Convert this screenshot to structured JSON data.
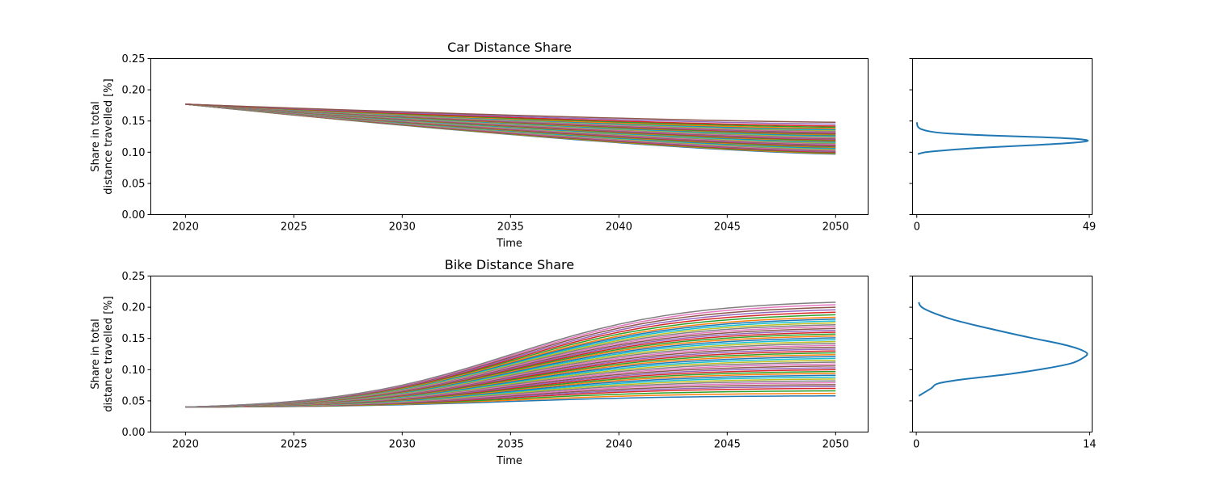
{
  "chart_data": [
    {
      "type": "line",
      "title": "Car Distance Share",
      "xlabel": "Time",
      "ylabel": [
        "Share in total",
        "distance travelled [%]"
      ],
      "xlim": [
        2018.4,
        2051.5
      ],
      "ylim": [
        0,
        0.25
      ],
      "xticks": [
        "2020",
        "2025",
        "2030",
        "2035",
        "2040",
        "2045",
        "2050"
      ],
      "yticks": [
        "0.00",
        "0.05",
        "0.10",
        "0.15",
        "0.20",
        "0.25"
      ],
      "grid": false,
      "legend": "none",
      "x_range": [
        2020,
        2050
      ],
      "start_value": 0.177,
      "end_values": [
        0.097,
        0.098,
        0.099,
        0.1,
        0.101,
        0.102,
        0.103,
        0.104,
        0.105,
        0.106,
        0.107,
        0.108,
        0.109,
        0.11,
        0.111,
        0.112,
        0.113,
        0.114,
        0.115,
        0.116,
        0.117,
        0.118,
        0.119,
        0.12,
        0.121,
        0.122,
        0.123,
        0.124,
        0.125,
        0.126,
        0.127,
        0.128,
        0.129,
        0.13,
        0.131,
        0.132,
        0.133,
        0.134,
        0.135,
        0.136,
        0.137,
        0.138,
        0.14,
        0.142,
        0.145,
        0.148
      ],
      "series_colors": [
        "#1f77b4",
        "#ff7f0e",
        "#2ca02c",
        "#d62728",
        "#9467bd",
        "#8c564b",
        "#e377c2",
        "#7f7f7f",
        "#bcbd22",
        "#17becf"
      ],
      "distribution": {
        "xlim": [
          -1.2,
          49.8
        ],
        "xticks": [
          "0",
          "49"
        ],
        "color": "#1f77b4",
        "curve": [
          [
            0.3,
            0.097
          ],
          [
            2.5,
            0.1
          ],
          [
            8,
            0.103
          ],
          [
            18,
            0.107
          ],
          [
            32,
            0.111
          ],
          [
            44,
            0.115
          ],
          [
            48.5,
            0.118
          ],
          [
            46,
            0.121
          ],
          [
            36,
            0.124
          ],
          [
            20,
            0.127
          ],
          [
            9,
            0.13
          ],
          [
            4,
            0.133
          ],
          [
            1.2,
            0.137
          ],
          [
            0.3,
            0.141
          ],
          [
            0.1,
            0.145
          ],
          [
            0,
            0.148
          ]
        ]
      }
    },
    {
      "type": "line",
      "title": "Bike Distance Share",
      "xlabel": "Time",
      "ylabel": [
        "Share in total",
        "distance travelled [%]"
      ],
      "xlim": [
        2018.4,
        2051.5
      ],
      "ylim": [
        0,
        0.25
      ],
      "xticks": [
        "2020",
        "2025",
        "2030",
        "2035",
        "2040",
        "2045",
        "2050"
      ],
      "yticks": [
        "0.00",
        "0.05",
        "0.10",
        "0.15",
        "0.20",
        "0.25"
      ],
      "grid": false,
      "legend": "none",
      "x_range": [
        2020,
        2050
      ],
      "start_value": 0.04,
      "end_values": [
        0.058,
        0.062,
        0.066,
        0.07,
        0.073,
        0.076,
        0.079,
        0.082,
        0.085,
        0.088,
        0.091,
        0.094,
        0.097,
        0.1,
        0.103,
        0.106,
        0.109,
        0.112,
        0.115,
        0.118,
        0.121,
        0.124,
        0.127,
        0.13,
        0.133,
        0.136,
        0.139,
        0.142,
        0.145,
        0.148,
        0.151,
        0.154,
        0.157,
        0.16,
        0.163,
        0.166,
        0.169,
        0.172,
        0.175,
        0.178,
        0.181,
        0.184,
        0.188,
        0.192,
        0.196,
        0.2,
        0.204,
        0.208
      ],
      "series_colors": [
        "#1f77b4",
        "#ff7f0e",
        "#2ca02c",
        "#d62728",
        "#9467bd",
        "#8c564b",
        "#e377c2",
        "#7f7f7f",
        "#bcbd22",
        "#17becf"
      ],
      "distribution": {
        "xlim": [
          -0.3,
          14.2
        ],
        "xticks": [
          "0",
          "14"
        ],
        "color": "#1f77b4",
        "curve": [
          [
            0.2,
            0.058
          ],
          [
            1.2,
            0.07
          ],
          [
            1.8,
            0.078
          ],
          [
            4,
            0.085
          ],
          [
            7.5,
            0.093
          ],
          [
            10.5,
            0.102
          ],
          [
            12.5,
            0.11
          ],
          [
            13.4,
            0.118
          ],
          [
            13.8,
            0.126
          ],
          [
            13,
            0.134
          ],
          [
            11.5,
            0.142
          ],
          [
            9.5,
            0.15
          ],
          [
            7.2,
            0.16
          ],
          [
            5,
            0.17
          ],
          [
            3,
            0.18
          ],
          [
            1.5,
            0.19
          ],
          [
            0.6,
            0.198
          ],
          [
            0.3,
            0.203
          ],
          [
            0.2,
            0.208
          ]
        ]
      }
    }
  ]
}
